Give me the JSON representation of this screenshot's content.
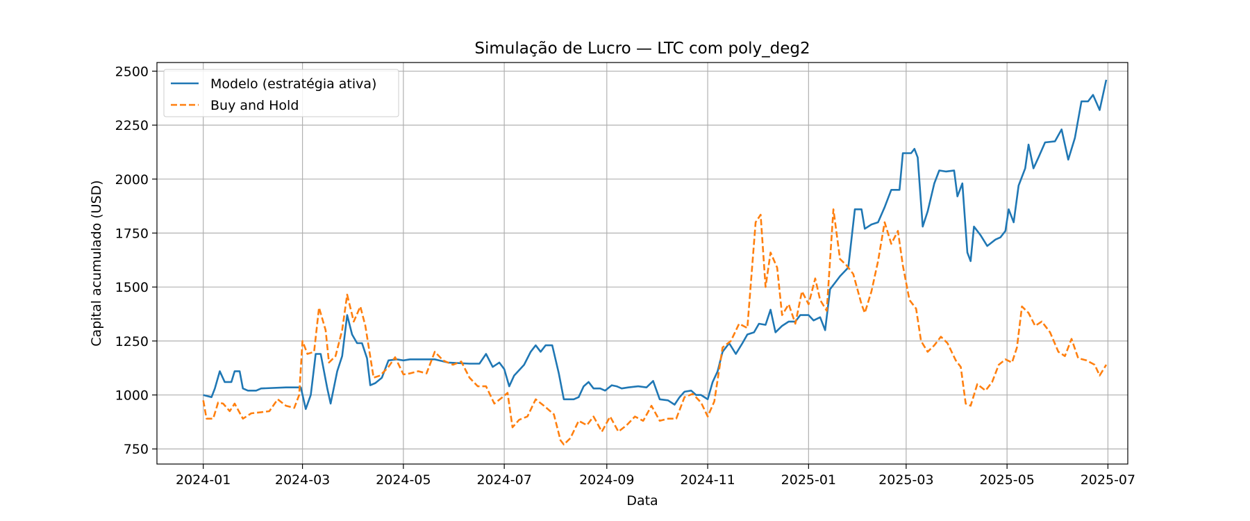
{
  "chart_data": {
    "type": "line",
    "title": "Simulação de Lucro — LTC com poly_deg2",
    "xlabel": "Data",
    "ylabel": "Capital acumulado (USD)",
    "ylim": [
      680,
      2540
    ],
    "xlim": [
      "2023-12-04",
      "2025-07-13"
    ],
    "x_ticks": [
      "2024-01",
      "2024-03",
      "2024-05",
      "2024-07",
      "2024-09",
      "2024-11",
      "2025-01",
      "2025-03",
      "2025-05",
      "2025-07"
    ],
    "y_ticks": [
      750,
      1000,
      1250,
      1500,
      1750,
      2000,
      2250,
      2500
    ],
    "grid": true,
    "legend_position": "top-left",
    "series": [
      {
        "name": "Modelo (estratégia ativa)",
        "color": "#1f77b4",
        "style": "solid",
        "points": [
          [
            "2024-01-01",
            1000
          ],
          [
            "2024-01-06",
            990
          ],
          [
            "2024-01-08",
            1030
          ],
          [
            "2024-01-11",
            1110
          ],
          [
            "2024-01-14",
            1060
          ],
          [
            "2024-01-18",
            1060
          ],
          [
            "2024-01-20",
            1110
          ],
          [
            "2024-01-23",
            1110
          ],
          [
            "2024-01-25",
            1030
          ],
          [
            "2024-01-28",
            1020
          ],
          [
            "2024-02-02",
            1020
          ],
          [
            "2024-02-05",
            1030
          ],
          [
            "2024-02-20",
            1035
          ],
          [
            "2024-02-29",
            1035
          ],
          [
            "2024-03-03",
            935
          ],
          [
            "2024-03-06",
            1000
          ],
          [
            "2024-03-09",
            1190
          ],
          [
            "2024-03-12",
            1190
          ],
          [
            "2024-03-16",
            1030
          ],
          [
            "2024-03-18",
            960
          ],
          [
            "2024-03-22",
            1110
          ],
          [
            "2024-03-25",
            1180
          ],
          [
            "2024-03-28",
            1370
          ],
          [
            "2024-03-31",
            1280
          ],
          [
            "2024-04-03",
            1240
          ],
          [
            "2024-04-06",
            1240
          ],
          [
            "2024-04-09",
            1170
          ],
          [
            "2024-04-11",
            1045
          ],
          [
            "2024-04-14",
            1055
          ],
          [
            "2024-04-18",
            1080
          ],
          [
            "2024-04-22",
            1160
          ],
          [
            "2024-04-27",
            1165
          ],
          [
            "2024-05-01",
            1160
          ],
          [
            "2024-05-05",
            1165
          ],
          [
            "2024-05-20",
            1165
          ],
          [
            "2024-05-28",
            1150
          ],
          [
            "2024-06-10",
            1145
          ],
          [
            "2024-06-16",
            1145
          ],
          [
            "2024-06-20",
            1190
          ],
          [
            "2024-06-24",
            1130
          ],
          [
            "2024-06-28",
            1150
          ],
          [
            "2024-07-01",
            1120
          ],
          [
            "2024-07-04",
            1040
          ],
          [
            "2024-07-07",
            1090
          ],
          [
            "2024-07-13",
            1140
          ],
          [
            "2024-07-17",
            1200
          ],
          [
            "2024-07-20",
            1230
          ],
          [
            "2024-07-23",
            1200
          ],
          [
            "2024-07-26",
            1230
          ],
          [
            "2024-07-30",
            1230
          ],
          [
            "2024-08-03",
            1100
          ],
          [
            "2024-08-06",
            980
          ],
          [
            "2024-08-12",
            980
          ],
          [
            "2024-08-15",
            990
          ],
          [
            "2024-08-18",
            1040
          ],
          [
            "2024-08-21",
            1060
          ],
          [
            "2024-08-24",
            1030
          ],
          [
            "2024-08-28",
            1030
          ],
          [
            "2024-08-31",
            1020
          ],
          [
            "2024-09-04",
            1045
          ],
          [
            "2024-09-07",
            1040
          ],
          [
            "2024-09-10",
            1030
          ],
          [
            "2024-09-14",
            1035
          ],
          [
            "2024-09-20",
            1040
          ],
          [
            "2024-09-25",
            1035
          ],
          [
            "2024-09-29",
            1065
          ],
          [
            "2024-10-03",
            980
          ],
          [
            "2024-10-08",
            975
          ],
          [
            "2024-10-12",
            955
          ],
          [
            "2024-10-15",
            990
          ],
          [
            "2024-10-18",
            1015
          ],
          [
            "2024-10-22",
            1020
          ],
          [
            "2024-10-25",
            1000
          ],
          [
            "2024-10-28",
            1000
          ],
          [
            "2024-11-01",
            980
          ],
          [
            "2024-11-04",
            1060
          ],
          [
            "2024-11-07",
            1110
          ],
          [
            "2024-11-10",
            1200
          ],
          [
            "2024-11-14",
            1240
          ],
          [
            "2024-11-18",
            1190
          ],
          [
            "2024-11-22",
            1240
          ],
          [
            "2024-11-25",
            1280
          ],
          [
            "2024-11-29",
            1290
          ],
          [
            "2024-12-02",
            1330
          ],
          [
            "2024-12-06",
            1325
          ],
          [
            "2024-12-09",
            1395
          ],
          [
            "2024-12-12",
            1290
          ],
          [
            "2024-12-16",
            1320
          ],
          [
            "2024-12-20",
            1340
          ],
          [
            "2024-12-24",
            1340
          ],
          [
            "2024-12-27",
            1370
          ],
          [
            "2025-01-01",
            1370
          ],
          [
            "2025-01-04",
            1345
          ],
          [
            "2025-01-08",
            1360
          ],
          [
            "2025-01-11",
            1300
          ],
          [
            "2025-01-14",
            1490
          ],
          [
            "2025-01-17",
            1520
          ],
          [
            "2025-01-20",
            1550
          ],
          [
            "2025-01-25",
            1590
          ],
          [
            "2025-01-29",
            1860
          ],
          [
            "2025-02-02",
            1860
          ],
          [
            "2025-02-04",
            1770
          ],
          [
            "2025-02-08",
            1790
          ],
          [
            "2025-02-12",
            1800
          ],
          [
            "2025-02-16",
            1870
          ],
          [
            "2025-02-20",
            1950
          ],
          [
            "2025-02-25",
            1950
          ],
          [
            "2025-02-27",
            2120
          ],
          [
            "2025-03-04",
            2120
          ],
          [
            "2025-03-06",
            2140
          ],
          [
            "2025-03-08",
            2100
          ],
          [
            "2025-03-11",
            1780
          ],
          [
            "2025-03-14",
            1850
          ],
          [
            "2025-03-18",
            1980
          ],
          [
            "2025-03-21",
            2040
          ],
          [
            "2025-03-25",
            2035
          ],
          [
            "2025-03-30",
            2040
          ],
          [
            "2025-04-01",
            1920
          ],
          [
            "2025-04-04",
            1980
          ],
          [
            "2025-04-07",
            1660
          ],
          [
            "2025-04-09",
            1620
          ],
          [
            "2025-04-11",
            1780
          ],
          [
            "2025-04-15",
            1740
          ],
          [
            "2025-04-19",
            1690
          ],
          [
            "2025-04-24",
            1720
          ],
          [
            "2025-04-27",
            1730
          ],
          [
            "2025-04-30",
            1760
          ],
          [
            "2025-05-02",
            1860
          ],
          [
            "2025-05-05",
            1800
          ],
          [
            "2025-05-08",
            1970
          ],
          [
            "2025-05-12",
            2050
          ],
          [
            "2025-05-14",
            2160
          ],
          [
            "2025-05-17",
            2050
          ],
          [
            "2025-05-20",
            2100
          ],
          [
            "2025-05-24",
            2170
          ],
          [
            "2025-05-30",
            2175
          ],
          [
            "2025-06-03",
            2230
          ],
          [
            "2025-06-07",
            2090
          ],
          [
            "2025-06-11",
            2190
          ],
          [
            "2025-06-15",
            2360
          ],
          [
            "2025-06-19",
            2360
          ],
          [
            "2025-06-22",
            2390
          ],
          [
            "2025-06-26",
            2320
          ],
          [
            "2025-06-30",
            2460
          ]
        ]
      },
      {
        "name": "Buy and Hold",
        "color": "#ff7f0e",
        "style": "dashed",
        "points": [
          [
            "2024-01-01",
            975
          ],
          [
            "2024-01-03",
            890
          ],
          [
            "2024-01-07",
            890
          ],
          [
            "2024-01-10",
            965
          ],
          [
            "2024-01-13",
            960
          ],
          [
            "2024-01-17",
            925
          ],
          [
            "2024-01-20",
            960
          ],
          [
            "2024-01-25",
            890
          ],
          [
            "2024-01-30",
            915
          ],
          [
            "2024-02-05",
            920
          ],
          [
            "2024-02-10",
            925
          ],
          [
            "2024-02-15",
            980
          ],
          [
            "2024-02-20",
            950
          ],
          [
            "2024-02-25",
            940
          ],
          [
            "2024-02-28",
            1000
          ],
          [
            "2024-03-01",
            1250
          ],
          [
            "2024-03-04",
            1190
          ],
          [
            "2024-03-08",
            1200
          ],
          [
            "2024-03-11",
            1405
          ],
          [
            "2024-03-15",
            1300
          ],
          [
            "2024-03-17",
            1150
          ],
          [
            "2024-03-21",
            1180
          ],
          [
            "2024-03-25",
            1300
          ],
          [
            "2024-03-28",
            1465
          ],
          [
            "2024-04-01",
            1340
          ],
          [
            "2024-04-05",
            1410
          ],
          [
            "2024-04-08",
            1320
          ],
          [
            "2024-04-13",
            1080
          ],
          [
            "2024-04-17",
            1090
          ],
          [
            "2024-04-22",
            1130
          ],
          [
            "2024-04-26",
            1175
          ],
          [
            "2024-05-01",
            1095
          ],
          [
            "2024-05-05",
            1100
          ],
          [
            "2024-05-10",
            1110
          ],
          [
            "2024-05-15",
            1100
          ],
          [
            "2024-05-20",
            1200
          ],
          [
            "2024-05-25",
            1160
          ],
          [
            "2024-05-31",
            1140
          ],
          [
            "2024-06-05",
            1155
          ],
          [
            "2024-06-10",
            1080
          ],
          [
            "2024-06-15",
            1040
          ],
          [
            "2024-06-20",
            1040
          ],
          [
            "2024-06-25",
            960
          ],
          [
            "2024-06-30",
            990
          ],
          [
            "2024-07-03",
            1010
          ],
          [
            "2024-07-06",
            850
          ],
          [
            "2024-07-10",
            885
          ],
          [
            "2024-07-15",
            900
          ],
          [
            "2024-07-20",
            980
          ],
          [
            "2024-07-25",
            950
          ],
          [
            "2024-07-31",
            910
          ],
          [
            "2024-08-04",
            790
          ],
          [
            "2024-08-06",
            770
          ],
          [
            "2024-08-10",
            800
          ],
          [
            "2024-08-15",
            880
          ],
          [
            "2024-08-20",
            860
          ],
          [
            "2024-08-24",
            900
          ],
          [
            "2024-08-29",
            830
          ],
          [
            "2024-09-03",
            900
          ],
          [
            "2024-09-08",
            830
          ],
          [
            "2024-09-13",
            860
          ],
          [
            "2024-09-18",
            900
          ],
          [
            "2024-09-23",
            880
          ],
          [
            "2024-09-28",
            950
          ],
          [
            "2024-10-03",
            880
          ],
          [
            "2024-10-08",
            890
          ],
          [
            "2024-10-13",
            890
          ],
          [
            "2024-10-18",
            990
          ],
          [
            "2024-10-23",
            1005
          ],
          [
            "2024-10-28",
            965
          ],
          [
            "2024-11-01",
            900
          ],
          [
            "2024-11-05",
            970
          ],
          [
            "2024-11-10",
            1220
          ],
          [
            "2024-11-15",
            1250
          ],
          [
            "2024-11-20",
            1330
          ],
          [
            "2024-11-25",
            1310
          ],
          [
            "2024-11-30",
            1800
          ],
          [
            "2024-12-03",
            1835
          ],
          [
            "2024-12-06",
            1500
          ],
          [
            "2024-12-09",
            1660
          ],
          [
            "2024-12-13",
            1590
          ],
          [
            "2024-12-16",
            1370
          ],
          [
            "2024-12-20",
            1420
          ],
          [
            "2024-12-24",
            1330
          ],
          [
            "2024-12-28",
            1480
          ],
          [
            "2025-01-01",
            1420
          ],
          [
            "2025-01-05",
            1540
          ],
          [
            "2025-01-08",
            1440
          ],
          [
            "2025-01-12",
            1390
          ],
          [
            "2025-01-16",
            1860
          ],
          [
            "2025-01-20",
            1630
          ],
          [
            "2025-01-24",
            1600
          ],
          [
            "2025-01-28",
            1560
          ],
          [
            "2025-02-02",
            1420
          ],
          [
            "2025-02-04",
            1380
          ],
          [
            "2025-02-08",
            1480
          ],
          [
            "2025-02-12",
            1620
          ],
          [
            "2025-02-16",
            1800
          ],
          [
            "2025-02-20",
            1700
          ],
          [
            "2025-02-24",
            1760
          ],
          [
            "2025-02-27",
            1600
          ],
          [
            "2025-03-03",
            1440
          ],
          [
            "2025-03-07",
            1400
          ],
          [
            "2025-03-10",
            1250
          ],
          [
            "2025-03-14",
            1200
          ],
          [
            "2025-03-18",
            1230
          ],
          [
            "2025-03-22",
            1270
          ],
          [
            "2025-03-26",
            1240
          ],
          [
            "2025-03-31",
            1160
          ],
          [
            "2025-04-03",
            1130
          ],
          [
            "2025-04-06",
            960
          ],
          [
            "2025-04-09",
            950
          ],
          [
            "2025-04-13",
            1050
          ],
          [
            "2025-04-18",
            1020
          ],
          [
            "2025-04-22",
            1060
          ],
          [
            "2025-04-26",
            1140
          ],
          [
            "2025-04-30",
            1165
          ],
          [
            "2025-05-04",
            1150
          ],
          [
            "2025-05-07",
            1220
          ],
          [
            "2025-05-10",
            1410
          ],
          [
            "2025-05-14",
            1380
          ],
          [
            "2025-05-18",
            1320
          ],
          [
            "2025-05-22",
            1340
          ],
          [
            "2025-05-27",
            1290
          ],
          [
            "2025-06-01",
            1200
          ],
          [
            "2025-06-05",
            1180
          ],
          [
            "2025-06-09",
            1260
          ],
          [
            "2025-06-13",
            1170
          ],
          [
            "2025-06-18",
            1160
          ],
          [
            "2025-06-23",
            1140
          ],
          [
            "2025-06-26",
            1090
          ],
          [
            "2025-06-30",
            1140
          ]
        ]
      }
    ]
  }
}
